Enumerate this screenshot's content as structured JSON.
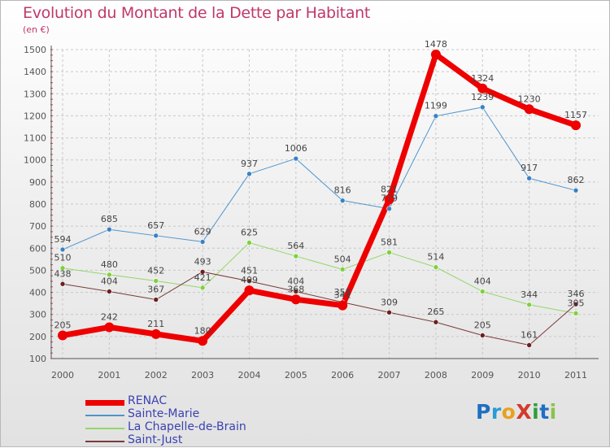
{
  "title": "Evolution du Montant de la Dette par Habitant",
  "subtitle": "(en €)",
  "logo": {
    "text": "ProXiti",
    "letters": [
      {
        "ch": "P",
        "color": "#1f6fc2"
      },
      {
        "ch": "r",
        "color": "#2a9bd6"
      },
      {
        "ch": "o",
        "color": "#e8a01e"
      },
      {
        "ch": "X",
        "color": "#d33a2c"
      },
      {
        "ch": "i",
        "color": "#2e9e3a"
      },
      {
        "ch": "t",
        "color": "#1f6fc2"
      },
      {
        "ch": "i",
        "color": "#8bc34a"
      }
    ]
  },
  "chart_data": {
    "type": "line",
    "title": "Evolution du Montant de la Dette par Habitant",
    "subtitle": "(en €)",
    "xlabel": "",
    "ylabel": "",
    "ylim": [
      100,
      1500
    ],
    "yticks": [
      100,
      200,
      300,
      400,
      500,
      600,
      700,
      800,
      900,
      1000,
      1100,
      1200,
      1300,
      1400,
      1500
    ],
    "grid": true,
    "legend_position": "bottom-left",
    "x": [
      "2000",
      "2001",
      "2002",
      "2003",
      "2004",
      "2005",
      "2006",
      "2007",
      "2008",
      "2009",
      "2010",
      "2011"
    ],
    "series": [
      {
        "name": "Sainte-Marie",
        "color": "#4f94cc",
        "point": "#3a82c4",
        "width": 1,
        "values": [
          594,
          685,
          657,
          629,
          937,
          1006,
          816,
          779,
          1199,
          1239,
          917,
          862
        ]
      },
      {
        "name": "La Chapelle-de-Brain",
        "color": "#94d66a",
        "point": "#7fd13b",
        "width": 1,
        "values": [
          510,
          480,
          452,
          421,
          625,
          564,
          504,
          581,
          514,
          404,
          344,
          305
        ]
      },
      {
        "name": "Saint-Just",
        "color": "#7a3a3a",
        "point": "#6b1f1f",
        "width": 1,
        "values": [
          438,
          404,
          367,
          493,
          451,
          404,
          355,
          309,
          265,
          205,
          161,
          346
        ]
      },
      {
        "name": "RENAC",
        "color": "#ee0000",
        "point": "#ee0000",
        "width": 7,
        "values": [
          205,
          242,
          211,
          180,
          409,
          368,
          341,
          821,
          1478,
          1324,
          1230,
          1157
        ]
      }
    ],
    "legend_order": [
      "RENAC",
      "Sainte-Marie",
      "La Chapelle-de-Brain",
      "Saint-Just"
    ]
  }
}
